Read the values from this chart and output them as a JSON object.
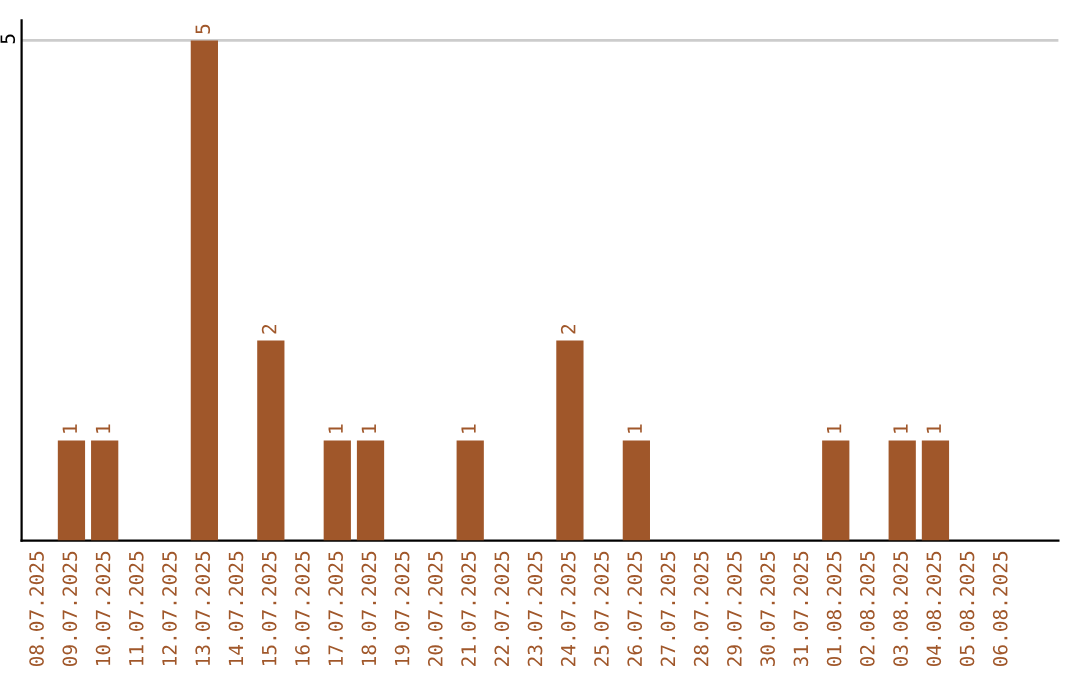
{
  "chart_data": {
    "type": "bar",
    "categories": [
      "08.07.2025",
      "09.07.2025",
      "10.07.2025",
      "11.07.2025",
      "12.07.2025",
      "13.07.2025",
      "14.07.2025",
      "15.07.2025",
      "16.07.2025",
      "17.07.2025",
      "18.07.2025",
      "19.07.2025",
      "20.07.2025",
      "21.07.2025",
      "22.07.2025",
      "23.07.2025",
      "24.07.2025",
      "25.07.2025",
      "26.07.2025",
      "27.07.2025",
      "28.07.2025",
      "29.07.2025",
      "30.07.2025",
      "31.07.2025",
      "01.08.2025",
      "02.08.2025",
      "03.08.2025",
      "04.08.2025",
      "05.08.2025",
      "06.08.2025"
    ],
    "values": [
      0,
      1,
      1,
      0,
      0,
      5,
      0,
      2,
      0,
      1,
      1,
      0,
      0,
      1,
      0,
      0,
      2,
      0,
      1,
      0,
      0,
      0,
      0,
      0,
      1,
      0,
      1,
      1,
      0,
      0
    ],
    "value_labels": [
      null,
      "1",
      "1",
      null,
      null,
      "5",
      null,
      "2",
      null,
      "1",
      "1",
      null,
      null,
      "1",
      null,
      null,
      "2",
      null,
      "1",
      null,
      null,
      null,
      null,
      null,
      "1",
      null,
      "1",
      "1",
      null,
      null
    ],
    "color": "#a0572a",
    "ylim": [
      0,
      5.2
    ],
    "yticks": [
      5
    ],
    "grid": "y"
  }
}
